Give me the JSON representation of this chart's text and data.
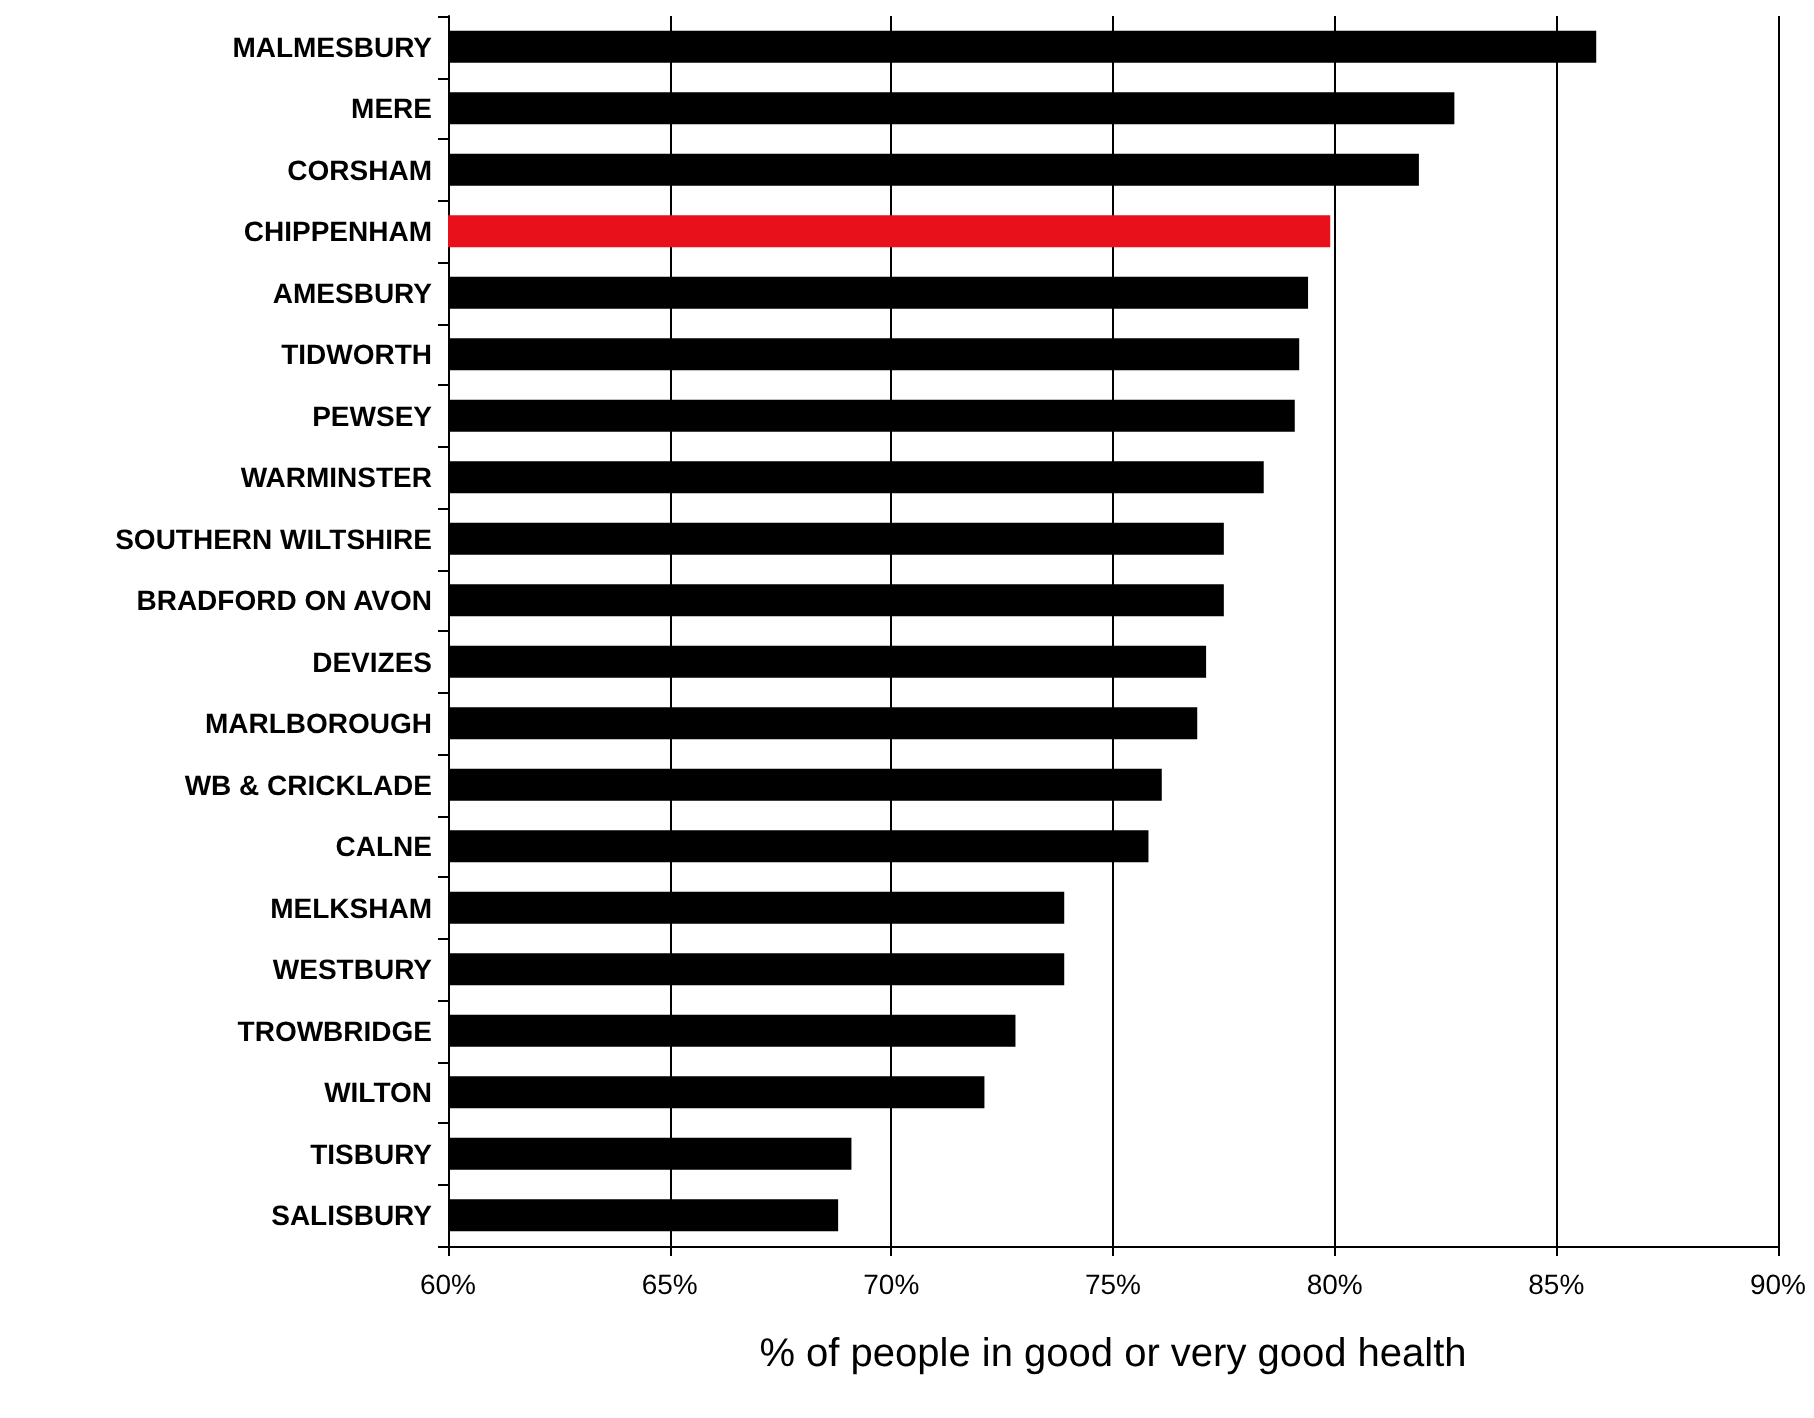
{
  "chart_data": {
    "type": "bar",
    "orientation": "horizontal",
    "xlabel": "% of people in good or very good health",
    "categories": [
      "MALMESBURY",
      "MERE",
      "CORSHAM",
      "CHIPPENHAM",
      "AMESBURY",
      "TIDWORTH",
      "PEWSEY",
      "WARMINSTER",
      "SOUTHERN WILTSHIRE",
      "BRADFORD ON AVON",
      "DEVIZES",
      "MARLBOROUGH",
      "WB & CRICKLADE",
      "CALNE",
      "MELKSHAM",
      "WESTBURY",
      "TROWBRIDGE",
      "WILTON",
      "TISBURY",
      "SALISBURY"
    ],
    "values": [
      85.9,
      82.7,
      81.9,
      79.9,
      79.4,
      79.2,
      79.1,
      78.4,
      77.5,
      77.5,
      77.1,
      76.9,
      76.1,
      75.8,
      73.9,
      73.9,
      72.8,
      72.1,
      69.1,
      68.8
    ],
    "colors": [
      "#000000",
      "#000000",
      "#000000",
      "#e8101a",
      "#000000",
      "#000000",
      "#000000",
      "#000000",
      "#000000",
      "#000000",
      "#000000",
      "#000000",
      "#000000",
      "#000000",
      "#000000",
      "#000000",
      "#000000",
      "#000000",
      "#000000",
      "#000000"
    ],
    "xlim": [
      60,
      90
    ],
    "xticks": [
      {
        "value": 60,
        "label": "60%"
      },
      {
        "value": 65,
        "label": "65%"
      },
      {
        "value": 70,
        "label": "70%"
      },
      {
        "value": 75,
        "label": "75%"
      },
      {
        "value": 80,
        "label": "80%"
      },
      {
        "value": 85,
        "label": "85%"
      },
      {
        "value": 90,
        "label": "90%"
      }
    ],
    "grid": "x"
  }
}
